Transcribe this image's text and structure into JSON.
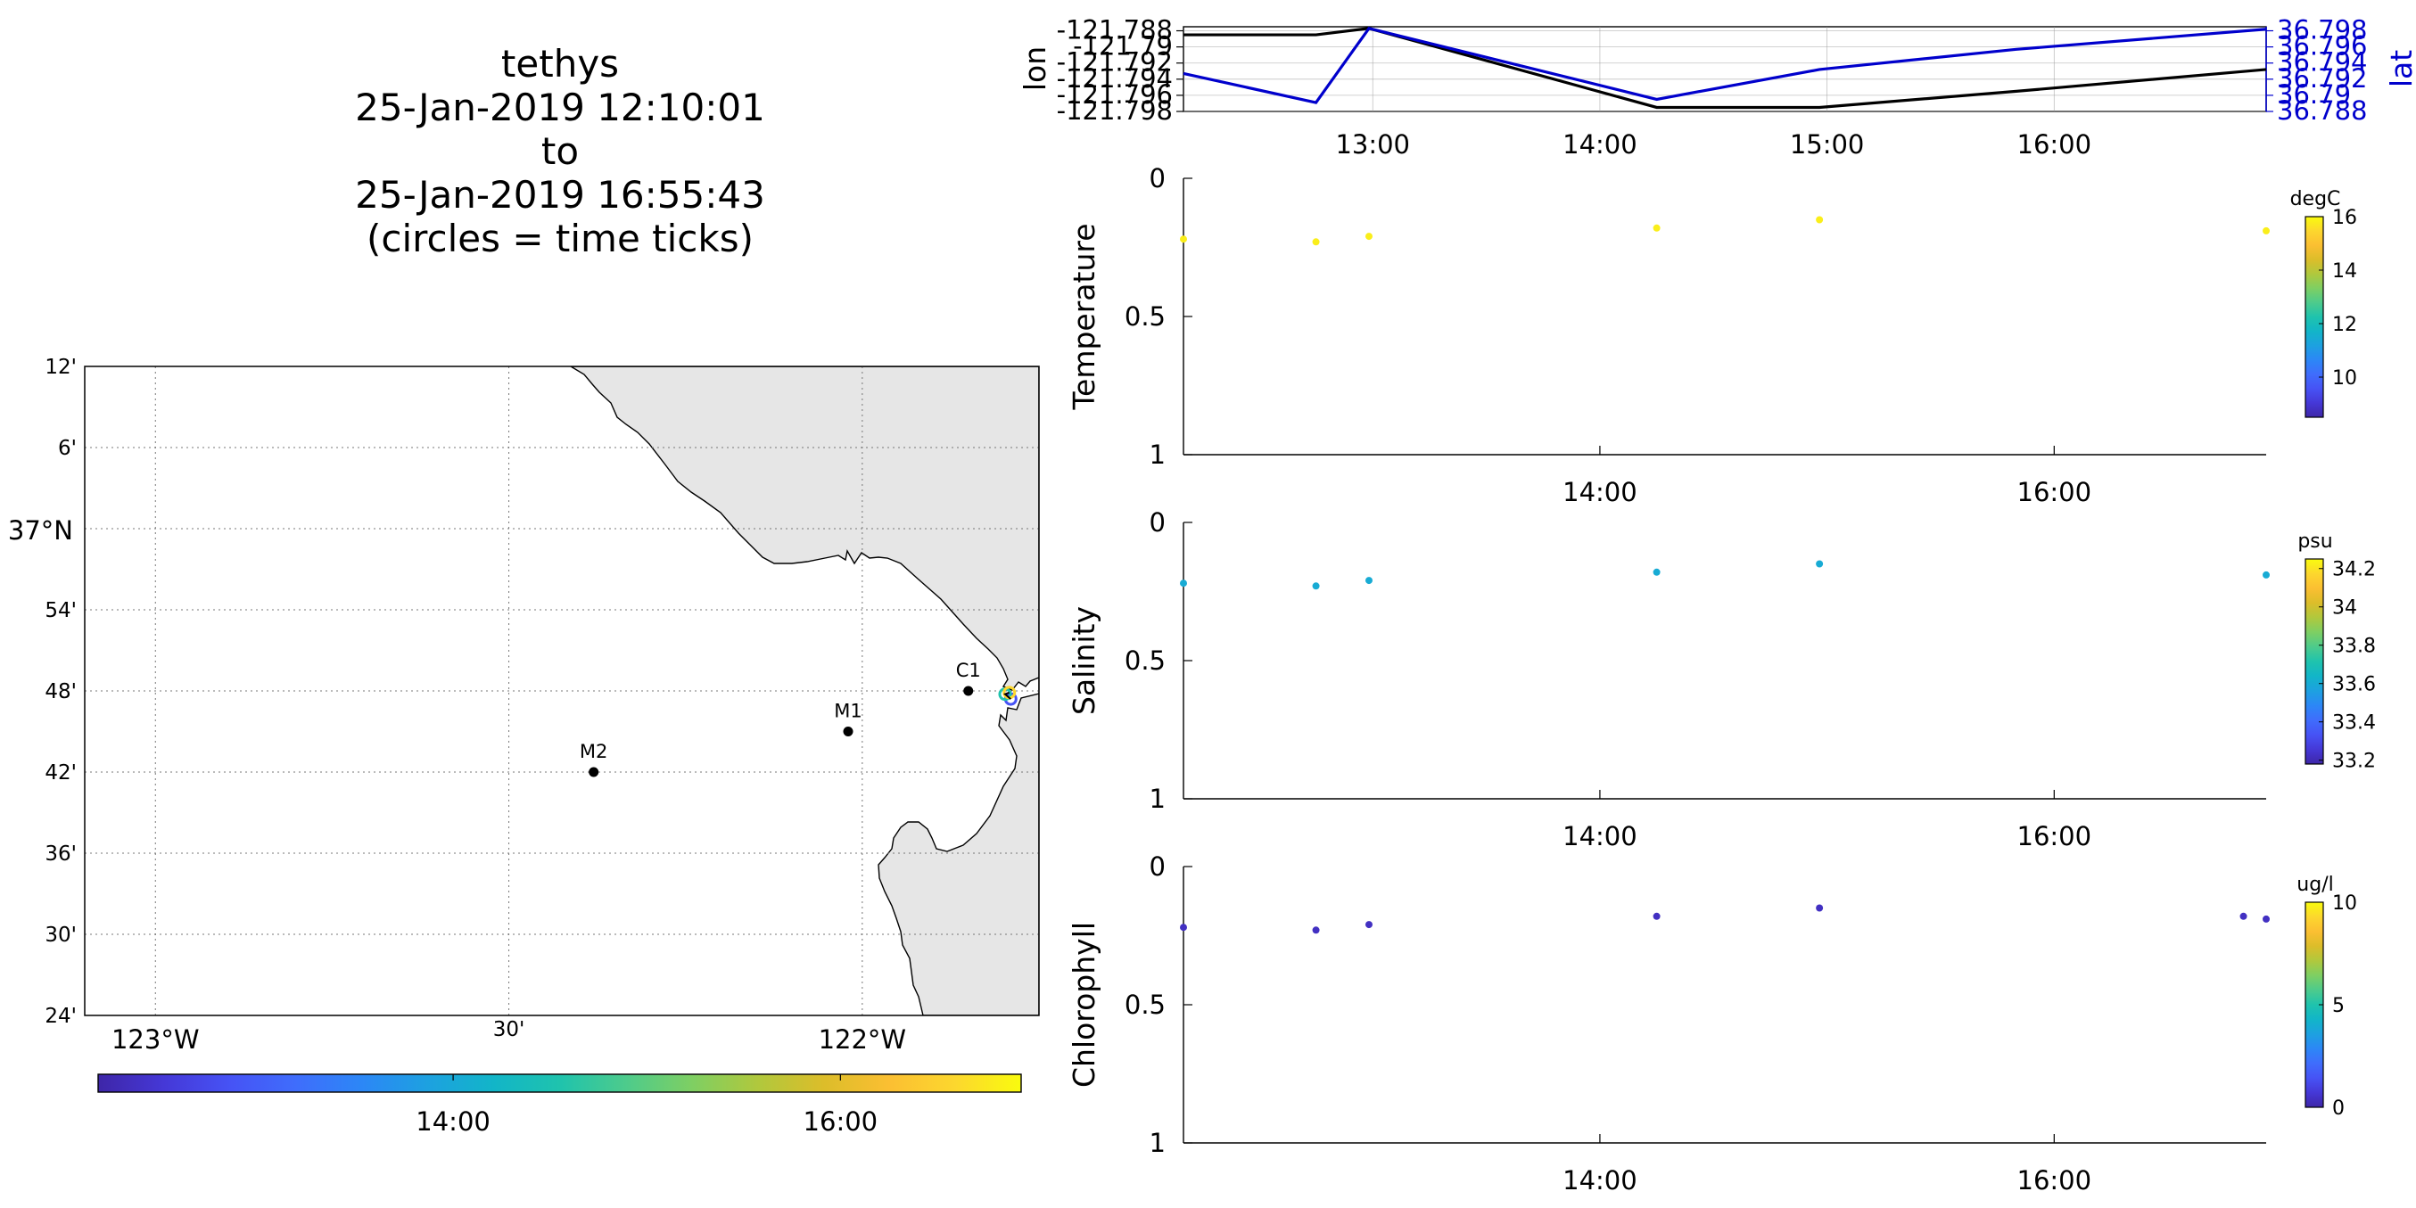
{
  "title": {
    "lines": [
      "tethys",
      "25-Jan-2019 12:10:01",
      "to",
      "25-Jan-2019 16:55:43",
      "(circles = time ticks)"
    ]
  },
  "colors": {
    "lon_line": "#000000",
    "lat_line": "#0000cc",
    "coast_fill": "#e6e6e6",
    "grid": "#9a9a9a",
    "parula": [
      "#3e26a8",
      "#4538d7",
      "#4653f5",
      "#3f6dfc",
      "#2c87f6",
      "#1da1e0",
      "#12b5c8",
      "#1fc3ad",
      "#4dcb8c",
      "#7ecf63",
      "#b0c83d",
      "#dcbd2a",
      "#fbbf32",
      "#fcd72e",
      "#f9fb0e"
    ]
  },
  "chart_data": [
    {
      "id": "lonlat",
      "type": "line",
      "xlabel": "",
      "ylabel_left": "lon",
      "ylabel_right": "lat",
      "xlim": [
        "12:10",
        "16:56"
      ],
      "x_ticks": [
        "13:00",
        "14:00",
        "15:00",
        "16:00"
      ],
      "left_ylim": [
        -121.798,
        -121.7875
      ],
      "left_ticks": [
        "-121.788",
        "-121.79",
        "-121.792",
        "-121.794",
        "-121.796",
        "-121.798"
      ],
      "right_ylim": [
        36.788,
        36.7985
      ],
      "right_ticks": [
        "36.798",
        "36.796",
        "36.794",
        "36.792",
        "36.79",
        "36.788"
      ],
      "grid": true,
      "series": [
        {
          "name": "lon",
          "axis": "left",
          "x": [
            "12:10",
            "12:45",
            "12:59",
            "14:15",
            "14:58",
            "15:50",
            "16:56"
          ],
          "values": [
            -121.7885,
            -121.7885,
            -121.7877,
            -121.7975,
            -121.7975,
            -121.7955,
            -121.7928
          ]
        },
        {
          "name": "lat",
          "axis": "right",
          "x": [
            "12:10",
            "12:45",
            "12:59",
            "14:15",
            "14:58",
            "15:50",
            "16:56"
          ],
          "values": [
            36.7927,
            36.7891,
            36.7983,
            36.7895,
            36.7932,
            36.7957,
            36.7982
          ]
        }
      ]
    },
    {
      "id": "map",
      "type": "map",
      "lat_ticks": [
        "12'",
        "6'",
        "37°N",
        "54'",
        "48'",
        "42'",
        "36'",
        "30'",
        "24'"
      ],
      "lon_ticks": [
        "123°W",
        "30'",
        "122°W"
      ],
      "xlim_lon": [
        -123.1,
        -121.75
      ],
      "ylim_lat": [
        36.4,
        37.2
      ],
      "stations": [
        {
          "name": "C1",
          "lon": -121.85,
          "lat": 36.8
        },
        {
          "name": "M1",
          "lon": -122.02,
          "lat": 36.75
        },
        {
          "name": "M2",
          "lon": -122.38,
          "lat": 36.7
        }
      ],
      "track": {
        "lon": [
          -121.79,
          -121.798,
          -121.792
        ],
        "lat": [
          36.79,
          36.796,
          36.798
        ]
      },
      "colorbar": {
        "ticks": [
          "14:00",
          "16:00"
        ],
        "range": [
          "12:10",
          "16:56"
        ]
      }
    },
    {
      "id": "temperature",
      "type": "scatter",
      "ylabel": "Temperature",
      "ylim": [
        0,
        1
      ],
      "y_reversed": true,
      "y_ticks": [
        "0",
        "0.5",
        "1"
      ],
      "x_ticks": [
        "14:00",
        "16:00"
      ],
      "xlim": [
        "12:10",
        "16:56"
      ],
      "colorbar": {
        "unit": "degC",
        "min": 8.5,
        "max": 16,
        "ticks": [
          "16",
          "14",
          "12",
          "10"
        ]
      },
      "points": {
        "x": [
          "12:10",
          "12:45",
          "12:59",
          "14:15",
          "14:58",
          "16:56"
        ],
        "y": [
          0.22,
          0.23,
          0.21,
          0.18,
          0.15,
          0.19
        ],
        "c": [
          15.8,
          15.8,
          15.8,
          15.8,
          15.8,
          15.8
        ]
      }
    },
    {
      "id": "salinity",
      "type": "scatter",
      "ylabel": "Salinity",
      "ylim": [
        0,
        1
      ],
      "y_reversed": true,
      "y_ticks": [
        "0",
        "0.5",
        "1"
      ],
      "x_ticks": [
        "14:00",
        "16:00"
      ],
      "xlim": [
        "12:10",
        "16:56"
      ],
      "colorbar": {
        "unit": "psu",
        "min": 33.18,
        "max": 34.25,
        "ticks": [
          "34.2",
          "34",
          "33.8",
          "33.6",
          "33.4",
          "33.2"
        ]
      },
      "points": {
        "x": [
          "12:10",
          "12:45",
          "12:59",
          "14:15",
          "14:58",
          "16:56"
        ],
        "y": [
          0.22,
          0.23,
          0.21,
          0.18,
          0.15,
          0.19
        ],
        "c": [
          33.6,
          33.6,
          33.6,
          33.6,
          33.6,
          33.6
        ]
      }
    },
    {
      "id": "chlorophyll",
      "type": "scatter",
      "ylabel": "Chlorophyll",
      "ylim": [
        0,
        1
      ],
      "y_reversed": true,
      "y_ticks": [
        "0",
        "0.5",
        "1"
      ],
      "x_ticks": [
        "14:00",
        "16:00"
      ],
      "xlim": [
        "12:10",
        "16:56"
      ],
      "colorbar": {
        "unit": "ug/l",
        "min": 0,
        "max": 10,
        "ticks": [
          "10",
          "5",
          "0"
        ]
      },
      "points": {
        "x": [
          "12:10",
          "12:45",
          "12:59",
          "14:15",
          "14:58",
          "16:50",
          "16:56"
        ],
        "y": [
          0.22,
          0.23,
          0.21,
          0.18,
          0.15,
          0.18,
          0.19
        ],
        "c": [
          0.4,
          0.4,
          0.4,
          0.4,
          0.4,
          0.4,
          0.4
        ]
      }
    }
  ]
}
